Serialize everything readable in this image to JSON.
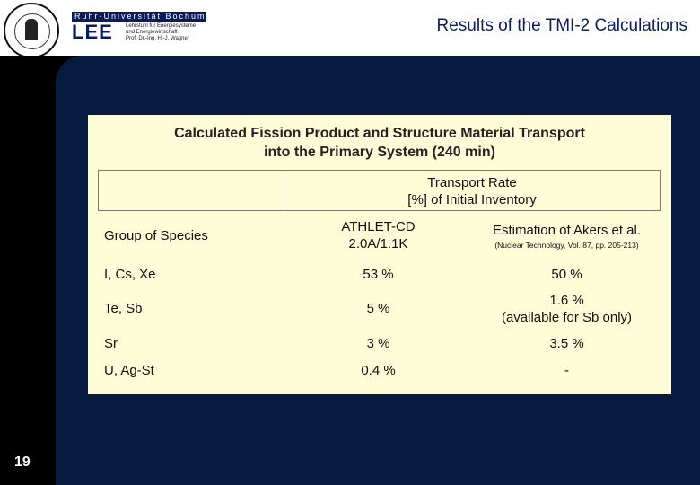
{
  "header": {
    "university_logo_text": "Ruhr-Universität Bochum",
    "institute_short": "LEE",
    "institute_lines": [
      "Lehrstuhl für Energiesysteme",
      "und Energiewirtschaft",
      "Prof. Dr.-Ing. H.-J. Wagner"
    ],
    "title": "Results of the TMI-2 Calculations"
  },
  "slide_number": "19",
  "panel": {
    "title_line1": "Calculated Fission Product and Structure Material Transport",
    "title_line2": "into the Primary System (240 min)"
  },
  "table": {
    "rate_header_line1": "Transport Rate",
    "rate_header_line2": "[%] of Initial Inventory",
    "col_group_label": "Group of Species",
    "col_athlet_line1": "ATHLET-CD",
    "col_athlet_line2": "2.0A/1.1K",
    "col_akers_label": "Estimation of Akers et al.",
    "col_akers_ref": "(Nuclear Technology, Vol. 87, pp. 205-213)",
    "rows": [
      {
        "group": "I, Cs, Xe",
        "athlet": "53 %",
        "akers": "50 %",
        "akers_note": ""
      },
      {
        "group": "Te, Sb",
        "athlet": "5 %",
        "akers": "1.6 %",
        "akers_note": "(available for Sb only)"
      },
      {
        "group": "Sr",
        "athlet": "3 %",
        "akers": "3.5 %",
        "akers_note": ""
      },
      {
        "group": "U, Ag-St",
        "athlet": "0.4 %",
        "akers": "-",
        "akers_note": ""
      }
    ]
  },
  "colors": {
    "background": "#000000",
    "main_area": "#071a40",
    "panel": "#fffcd8",
    "title_text": "#0b1c5a"
  }
}
